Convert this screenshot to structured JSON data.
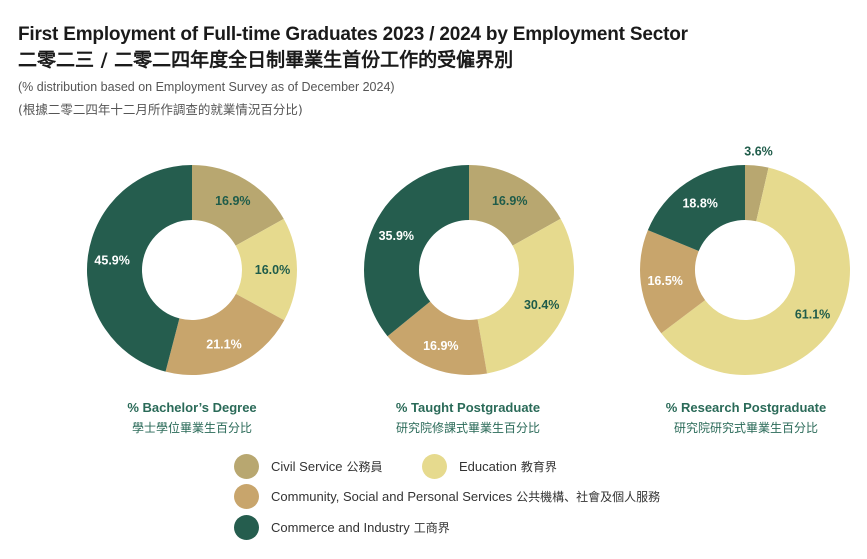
{
  "header": {
    "title_en": "First Employment of Full-time Graduates 2023 / 2024 by Employment Sector",
    "title_zh": "二零二三 / 二零二四年度全日制畢業生首份工作的受僱界別",
    "subtitle_en": "(% distribution based on Employment Survey as of December 2024)",
    "subtitle_zh": "(根據二零二四年十二月所作調查的就業情況百分比)"
  },
  "colors": {
    "civil_service": "#b8a770",
    "education": "#e6da8e",
    "community": "#c8a56c",
    "commerce": "#255d4e",
    "label_dark": "#1f5c4a",
    "label_light": "#ffffff"
  },
  "chart_data": [
    {
      "type": "pie",
      "caption_en": "% Bachelor’s Degree",
      "caption_zh": "學士學位畢業生百分比",
      "slices": [
        {
          "category": "Civil Service",
          "value": 16.9,
          "label": "16.9%"
        },
        {
          "category": "Education",
          "value": 16.0,
          "label": "16.0%"
        },
        {
          "category": "Community, Social and Personal Services",
          "value": 21.1,
          "label": "21.1%"
        },
        {
          "category": "Commerce and Industry",
          "value": 45.9,
          "label": "45.9%"
        }
      ]
    },
    {
      "type": "pie",
      "caption_en": "% Taught Postgraduate",
      "caption_zh": "研究院修課式畢業生百分比",
      "slices": [
        {
          "category": "Civil Service",
          "value": 16.9,
          "label": "16.9%"
        },
        {
          "category": "Education",
          "value": 30.4,
          "label": "30.4%"
        },
        {
          "category": "Community, Social and Personal Services",
          "value": 16.9,
          "label": "16.9%"
        },
        {
          "category": "Commerce and Industry",
          "value": 35.9,
          "label": "35.9%"
        }
      ]
    },
    {
      "type": "pie",
      "caption_en": "% Research Postgraduate",
      "caption_zh": "研究院研究式畢業生百分比",
      "slices": [
        {
          "category": "Civil Service",
          "value": 3.6,
          "label": "3.6%"
        },
        {
          "category": "Education",
          "value": 61.1,
          "label": "61.1%"
        },
        {
          "category": "Community, Social and Personal Services",
          "value": 16.5,
          "label": "16.5%"
        },
        {
          "category": "Commerce and Industry",
          "value": 18.8,
          "label": "18.8%"
        }
      ]
    }
  ],
  "legend": [
    {
      "en": "Civil Service",
      "zh": "公務員",
      "color": "#b8a770"
    },
    {
      "en": "Education",
      "zh": "教育界",
      "color": "#e6da8e"
    },
    {
      "en": "Community, Social and Personal Services",
      "zh": "公共機構、社會及個人服務",
      "color": "#c8a56c"
    },
    {
      "en": "Commerce and Industry",
      "zh": "工商界",
      "color": "#255d4e"
    }
  ]
}
